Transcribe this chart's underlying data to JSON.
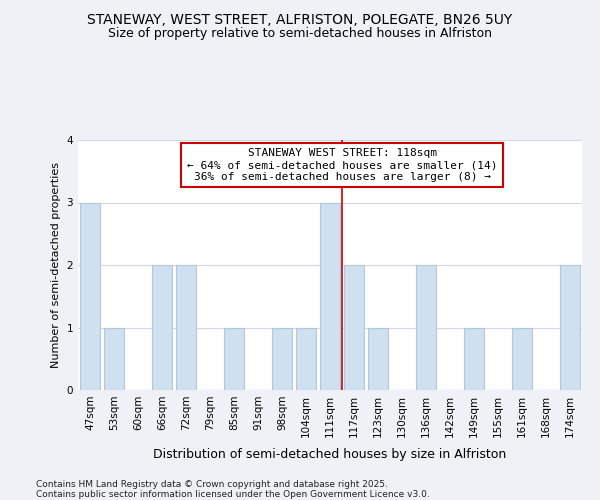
{
  "title": "STANEWAY, WEST STREET, ALFRISTON, POLEGATE, BN26 5UY",
  "subtitle": "Size of property relative to semi-detached houses in Alfriston",
  "xlabel": "Distribution of semi-detached houses by size in Alfriston",
  "ylabel": "Number of semi-detached properties",
  "categories": [
    "47sqm",
    "53sqm",
    "60sqm",
    "66sqm",
    "72sqm",
    "79sqm",
    "85sqm",
    "91sqm",
    "98sqm",
    "104sqm",
    "111sqm",
    "117sqm",
    "123sqm",
    "130sqm",
    "136sqm",
    "142sqm",
    "149sqm",
    "155sqm",
    "161sqm",
    "168sqm",
    "174sqm"
  ],
  "values": [
    3,
    1,
    0,
    2,
    2,
    0,
    1,
    0,
    1,
    1,
    3,
    2,
    1,
    0,
    2,
    0,
    1,
    0,
    1,
    0,
    2
  ],
  "bar_color": "#cfe0ef",
  "bar_edgecolor": "#b0c8de",
  "red_line_between": 10,
  "annotation_text": "STANEWAY WEST STREET: 118sqm\n← 64% of semi-detached houses are smaller (14)\n36% of semi-detached houses are larger (8) →",
  "annotation_box_color": "#ffffff",
  "annotation_box_edgecolor": "#cc0000",
  "ylim": [
    0,
    4
  ],
  "yticks": [
    0,
    1,
    2,
    3,
    4
  ],
  "bg_color": "#eef2f7",
  "plot_bg_color": "#ffffff",
  "grid_color": "#d0d8e8",
  "title_fontsize": 10,
  "subtitle_fontsize": 9,
  "xlabel_fontsize": 9,
  "ylabel_fontsize": 8,
  "tick_fontsize": 7.5,
  "annotation_fontsize": 8,
  "footer_fontsize": 6.5,
  "footer": "Contains HM Land Registry data © Crown copyright and database right 2025.\nContains public sector information licensed under the Open Government Licence v3.0."
}
